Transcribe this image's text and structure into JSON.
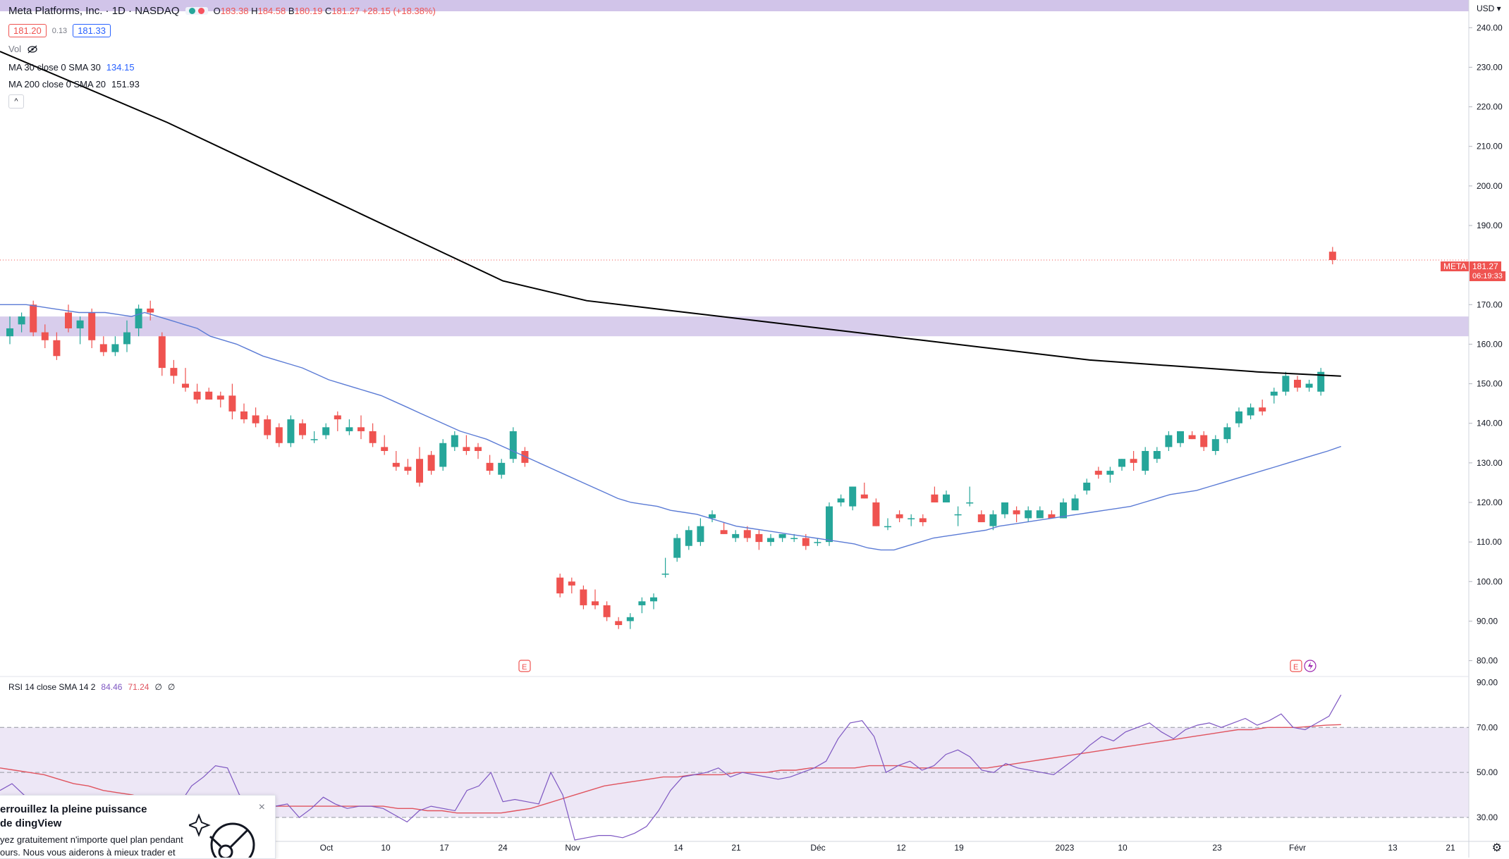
{
  "header": {
    "symbol_title": "Meta Platforms, Inc. · 1D · NASDAQ",
    "ohlc": [
      {
        "k": "O",
        "v": "183.38"
      },
      {
        "k": "H",
        "v": "184.58"
      },
      {
        "k": "B",
        "v": "180.19"
      },
      {
        "k": "C",
        "v": "181.27"
      },
      {
        "k": "",
        "v": "+28.15 (+18.38%)"
      }
    ],
    "bid": "181.20",
    "spread": "0.13",
    "ask": "181.33",
    "vol_label": "Vol",
    "ma30_label": "MA 30 close 0 SMA 30",
    "ma30_value": "134.15",
    "ma200_label": "MA 200 close 0 SMA 20",
    "ma200_value": "151.93",
    "collapse_icon": "^"
  },
  "price_axis": {
    "currency": "USD",
    "ticks": [
      "240.00",
      "230.00",
      "220.00",
      "210.00",
      "200.00",
      "190.00",
      "170.00",
      "160.00",
      "150.00",
      "140.00",
      "130.00",
      "120.00",
      "110.00",
      "100.00",
      "90.00",
      "80.00"
    ],
    "last_symbol_tag": "META",
    "last_price_tag": "181.27",
    "countdown": "06:19:33"
  },
  "rsi": {
    "label": "RSI 14 close SMA 14 2",
    "value1": "84.46",
    "value2": "71.24",
    "value3": "∅",
    "value4": "∅",
    "ticks": [
      "90.00",
      "70.00",
      "50.00",
      "30.00"
    ]
  },
  "time_axis": {
    "labels": [
      "Oct",
      "10",
      "17",
      "24",
      "Nov",
      "14",
      "21",
      "Déc",
      "12",
      "19",
      "2023",
      "10",
      "23",
      "Févr",
      "13",
      "21"
    ]
  },
  "earnings_marker": "E",
  "promo": {
    "title": "errouillez la pleine puissance de dingView",
    "body": "yez gratuitement n'importe quel plan pendant ours. Nous vous aiderons à mieux trader et",
    "close": "×"
  },
  "colors": {
    "up": "#26a69a",
    "down": "#ef5350",
    "ma30": "#5b7bd5",
    "ma200": "#000000",
    "zone": "#d1c4e9",
    "rsi_line": "#7e57c2",
    "rsi_ma": "#e0545f",
    "rsi_band": "#ede7f6"
  },
  "chart_data": {
    "type": "candlestick",
    "title": "Meta Platforms, Inc. · 1D · NASDAQ",
    "y_range": [
      76,
      247
    ],
    "candles": [
      {
        "o": 162,
        "h": 167,
        "l": 160,
        "c": 164
      },
      {
        "o": 165,
        "h": 168,
        "l": 163,
        "c": 167
      },
      {
        "o": 170,
        "h": 171,
        "l": 162,
        "c": 163
      },
      {
        "o": 163,
        "h": 165,
        "l": 159,
        "c": 161
      },
      {
        "o": 161,
        "h": 163,
        "l": 156,
        "c": 157
      },
      {
        "o": 168,
        "h": 170,
        "l": 163,
        "c": 164
      },
      {
        "o": 164,
        "h": 167,
        "l": 160,
        "c": 166
      },
      {
        "o": 168,
        "h": 169,
        "l": 159,
        "c": 161
      },
      {
        "o": 160,
        "h": 162,
        "l": 157,
        "c": 158
      },
      {
        "o": 158,
        "h": 162,
        "l": 157,
        "c": 160
      },
      {
        "o": 160,
        "h": 166,
        "l": 158,
        "c": 163
      },
      {
        "o": 164,
        "h": 170,
        "l": 162,
        "c": 169
      },
      {
        "o": 169,
        "h": 171,
        "l": 166,
        "c": 168
      },
      {
        "o": 162,
        "h": 163,
        "l": 152,
        "c": 154
      },
      {
        "o": 154,
        "h": 156,
        "l": 150,
        "c": 152
      },
      {
        "o": 150,
        "h": 154,
        "l": 148,
        "c": 149
      },
      {
        "o": 148,
        "h": 150,
        "l": 145,
        "c": 146
      },
      {
        "o": 148,
        "h": 149,
        "l": 146,
        "c": 146
      },
      {
        "o": 147,
        "h": 148,
        "l": 144,
        "c": 146
      },
      {
        "o": 147,
        "h": 150,
        "l": 141,
        "c": 143
      },
      {
        "o": 143,
        "h": 145,
        "l": 140,
        "c": 141
      },
      {
        "o": 142,
        "h": 144,
        "l": 139,
        "c": 140
      },
      {
        "o": 141,
        "h": 142,
        "l": 136,
        "c": 137
      },
      {
        "o": 139,
        "h": 140,
        "l": 134,
        "c": 135
      },
      {
        "o": 135,
        "h": 142,
        "l": 134,
        "c": 141
      },
      {
        "o": 140,
        "h": 141,
        "l": 136,
        "c": 137
      },
      {
        "o": 136,
        "h": 138,
        "l": 135,
        "c": 136
      },
      {
        "o": 137,
        "h": 140,
        "l": 136,
        "c": 139
      },
      {
        "o": 142,
        "h": 143,
        "l": 138,
        "c": 141
      },
      {
        "o": 138,
        "h": 141,
        "l": 137,
        "c": 139
      },
      {
        "o": 139,
        "h": 142,
        "l": 136,
        "c": 138
      },
      {
        "o": 138,
        "h": 140,
        "l": 134,
        "c": 135
      },
      {
        "o": 134,
        "h": 137,
        "l": 132,
        "c": 133
      },
      {
        "o": 130,
        "h": 133,
        "l": 128,
        "c": 129
      },
      {
        "o": 129,
        "h": 131,
        "l": 127,
        "c": 128
      },
      {
        "o": 131,
        "h": 134,
        "l": 124,
        "c": 125
      },
      {
        "o": 132,
        "h": 133,
        "l": 127,
        "c": 128
      },
      {
        "o": 129,
        "h": 136,
        "l": 128,
        "c": 135
      },
      {
        "o": 134,
        "h": 138,
        "l": 133,
        "c": 137
      },
      {
        "o": 134,
        "h": 137,
        "l": 132,
        "c": 133
      },
      {
        "o": 134,
        "h": 135,
        "l": 131,
        "c": 133
      },
      {
        "o": 130,
        "h": 132,
        "l": 127,
        "c": 128
      },
      {
        "o": 127,
        "h": 131,
        "l": 126,
        "c": 130
      },
      {
        "o": 131,
        "h": 139,
        "l": 130,
        "c": 138
      },
      {
        "o": 133,
        "h": 134,
        "l": 129,
        "c": 130
      },
      {
        "o": 101,
        "h": 102,
        "l": 96,
        "c": 97
      },
      {
        "o": 100,
        "h": 101,
        "l": 97,
        "c": 99
      },
      {
        "o": 98,
        "h": 99,
        "l": 93,
        "c": 94
      },
      {
        "o": 95,
        "h": 98,
        "l": 93,
        "c": 94
      },
      {
        "o": 94,
        "h": 95,
        "l": 90,
        "c": 91
      },
      {
        "o": 90,
        "h": 91,
        "l": 88,
        "c": 89
      },
      {
        "o": 90,
        "h": 92,
        "l": 88,
        "c": 91
      },
      {
        "o": 94,
        "h": 96,
        "l": 92,
        "c": 95
      },
      {
        "o": 95,
        "h": 97,
        "l": 93,
        "c": 96
      },
      {
        "o": 102,
        "h": 106,
        "l": 101,
        "c": 102
      },
      {
        "o": 106,
        "h": 112,
        "l": 105,
        "c": 111
      },
      {
        "o": 109,
        "h": 114,
        "l": 108,
        "c": 113
      },
      {
        "o": 110,
        "h": 116,
        "l": 109,
        "c": 114
      },
      {
        "o": 116,
        "h": 118,
        "l": 115,
        "c": 117
      },
      {
        "o": 113,
        "h": 115,
        "l": 112,
        "c": 112
      },
      {
        "o": 111,
        "h": 113,
        "l": 110,
        "c": 112
      },
      {
        "o": 113,
        "h": 114,
        "l": 110,
        "c": 111
      },
      {
        "o": 112,
        "h": 113,
        "l": 108,
        "c": 110
      },
      {
        "o": 110,
        "h": 112,
        "l": 109,
        "c": 111
      },
      {
        "o": 111,
        "h": 112,
        "l": 110,
        "c": 112
      },
      {
        "o": 111,
        "h": 112,
        "l": 110,
        "c": 111
      },
      {
        "o": 111,
        "h": 112,
        "l": 108,
        "c": 109
      },
      {
        "o": 110,
        "h": 111,
        "l": 109,
        "c": 110
      },
      {
        "o": 110,
        "h": 120,
        "l": 109,
        "c": 119
      },
      {
        "o": 120,
        "h": 122,
        "l": 119,
        "c": 121
      },
      {
        "o": 119,
        "h": 124,
        "l": 118,
        "c": 124
      },
      {
        "o": 122,
        "h": 125,
        "l": 121,
        "c": 121
      },
      {
        "o": 120,
        "h": 121,
        "l": 114,
        "c": 114
      },
      {
        "o": 114,
        "h": 116,
        "l": 113,
        "c": 114
      },
      {
        "o": 117,
        "h": 118,
        "l": 115,
        "c": 116
      },
      {
        "o": 116,
        "h": 117,
        "l": 114,
        "c": 116
      },
      {
        "o": 116,
        "h": 117,
        "l": 114,
        "c": 115
      },
      {
        "o": 122,
        "h": 124,
        "l": 120,
        "c": 120
      },
      {
        "o": 120,
        "h": 123,
        "l": 120,
        "c": 122
      },
      {
        "o": 117,
        "h": 119,
        "l": 114,
        "c": 117
      },
      {
        "o": 120,
        "h": 124,
        "l": 119,
        "c": 120
      },
      {
        "o": 117,
        "h": 118,
        "l": 115,
        "c": 115
      },
      {
        "o": 114,
        "h": 118,
        "l": 113,
        "c": 117
      },
      {
        "o": 117,
        "h": 120,
        "l": 116,
        "c": 120
      },
      {
        "o": 118,
        "h": 119,
        "l": 115,
        "c": 117
      },
      {
        "o": 116,
        "h": 119,
        "l": 115,
        "c": 118
      },
      {
        "o": 116,
        "h": 119,
        "l": 116,
        "c": 118
      },
      {
        "o": 117,
        "h": 118,
        "l": 116,
        "c": 116
      },
      {
        "o": 116,
        "h": 121,
        "l": 116,
        "c": 120
      },
      {
        "o": 118,
        "h": 122,
        "l": 118,
        "c": 121
      },
      {
        "o": 123,
        "h": 126,
        "l": 122,
        "c": 125
      },
      {
        "o": 128,
        "h": 129,
        "l": 126,
        "c": 127
      },
      {
        "o": 127,
        "h": 129,
        "l": 125,
        "c": 128
      },
      {
        "o": 129,
        "h": 131,
        "l": 128,
        "c": 131
      },
      {
        "o": 131,
        "h": 133,
        "l": 128,
        "c": 130
      },
      {
        "o": 128,
        "h": 134,
        "l": 127,
        "c": 133
      },
      {
        "o": 131,
        "h": 134,
        "l": 130,
        "c": 133
      },
      {
        "o": 134,
        "h": 138,
        "l": 133,
        "c": 137
      },
      {
        "o": 135,
        "h": 138,
        "l": 134,
        "c": 138
      },
      {
        "o": 137,
        "h": 138,
        "l": 136,
        "c": 136
      },
      {
        "o": 137,
        "h": 138,
        "l": 133,
        "c": 134
      },
      {
        "o": 133,
        "h": 137,
        "l": 132,
        "c": 136
      },
      {
        "o": 136,
        "h": 140,
        "l": 135,
        "c": 139
      },
      {
        "o": 140,
        "h": 144,
        "l": 139,
        "c": 143
      },
      {
        "o": 142,
        "h": 145,
        "l": 141,
        "c": 144
      },
      {
        "o": 144,
        "h": 146,
        "l": 142,
        "c": 143
      },
      {
        "o": 147,
        "h": 149,
        "l": 145,
        "c": 148
      },
      {
        "o": 148,
        "h": 153,
        "l": 147,
        "c": 152
      },
      {
        "o": 151,
        "h": 152,
        "l": 148,
        "c": 149
      },
      {
        "o": 149,
        "h": 151,
        "l": 148,
        "c": 150
      },
      {
        "o": 148,
        "h": 154,
        "l": 147,
        "c": 153
      },
      {
        "o": 183.38,
        "h": 184.58,
        "l": 180.19,
        "c": 181.27
      }
    ],
    "gaps_after": [
      44,
      111
    ],
    "series": [
      {
        "name": "MA 30 close 0 SMA 30",
        "values": [
          170,
          170,
          170,
          169.5,
          169,
          168.5,
          168,
          168,
          168,
          167.5,
          167,
          168,
          167,
          166,
          165,
          164,
          162,
          161,
          160,
          158.5,
          157,
          156,
          155,
          154,
          152.5,
          151,
          150,
          149,
          148,
          147,
          145.5,
          144,
          142.5,
          141,
          139.5,
          138,
          137,
          136,
          134.5,
          133,
          131.5,
          130,
          128.5,
          127,
          125.5,
          124,
          122.5,
          121,
          120,
          119.5,
          119,
          118,
          117.5,
          117,
          116,
          115,
          114,
          113.5,
          113,
          112.5,
          112,
          111.5,
          111,
          110.5,
          110,
          109.5,
          108.5,
          108,
          108,
          109,
          110,
          111,
          111.5,
          112,
          112.5,
          113,
          114,
          114.5,
          115,
          115.5,
          116,
          116.5,
          117,
          117.5,
          118,
          118.5,
          119,
          120,
          121,
          122,
          122.5,
          123,
          124,
          125,
          126,
          127,
          128,
          129,
          130,
          131,
          132,
          133,
          134.15
        ]
      },
      {
        "name": "MA 200 close 0 SMA 20",
        "values": [
          234,
          225,
          216,
          206,
          196,
          186,
          176,
          171,
          168.5,
          166,
          163.5,
          161,
          158.5,
          156,
          154.5,
          153,
          151.93
        ]
      },
      {
        "name": "RSI 14 close SMA 14 2",
        "values": [
          42,
          45,
          40,
          38,
          35,
          32,
          36,
          34,
          38,
          33,
          30,
          29,
          28,
          30,
          32,
          36,
          44,
          48,
          53,
          52,
          40,
          38,
          36,
          35,
          36,
          30,
          34,
          39,
          36,
          34,
          35,
          35,
          34,
          31,
          28,
          33,
          35,
          34,
          33,
          42,
          44,
          50,
          37,
          38,
          37,
          36,
          50,
          40,
          20,
          21,
          22,
          22,
          21,
          23,
          26,
          33,
          42,
          48,
          49,
          50,
          52,
          48,
          50,
          49,
          48,
          47,
          48,
          50,
          52,
          55,
          65,
          72,
          73,
          66,
          50,
          53,
          55,
          51,
          53,
          58,
          60,
          57,
          51,
          50,
          54,
          52,
          51,
          50,
          49,
          53,
          57,
          62,
          66,
          64,
          68,
          70,
          72,
          68,
          65,
          69,
          71,
          72,
          70,
          72,
          74,
          71,
          73,
          76,
          70,
          69,
          72,
          75,
          84.46
        ]
      },
      {
        "name": "RSI MA",
        "values": [
          52,
          51,
          50,
          49,
          47,
          45,
          44,
          42,
          41,
          40,
          38,
          37,
          36,
          35,
          35,
          35,
          35,
          35,
          35,
          35,
          35,
          35,
          35,
          35,
          35,
          35,
          35,
          34,
          34,
          33,
          33,
          32,
          32,
          32,
          32,
          33,
          34,
          36,
          38,
          40,
          42,
          44,
          45,
          46,
          47,
          48,
          48,
          49,
          49,
          49,
          50,
          50,
          50,
          51,
          51,
          52,
          52,
          52,
          52,
          53,
          53,
          53,
          52,
          52,
          52,
          52,
          52,
          52,
          53,
          54,
          55,
          56,
          57,
          58,
          59,
          60,
          61,
          62,
          63,
          64,
          65,
          66,
          67,
          68,
          69,
          69,
          70,
          70,
          70,
          70.5,
          71,
          71.24
        ]
      }
    ],
    "resistance_zone": [
      162,
      167
    ],
    "rsi_range": [
      20,
      92
    ],
    "rsi_levels": [
      70,
      50,
      30
    ]
  }
}
